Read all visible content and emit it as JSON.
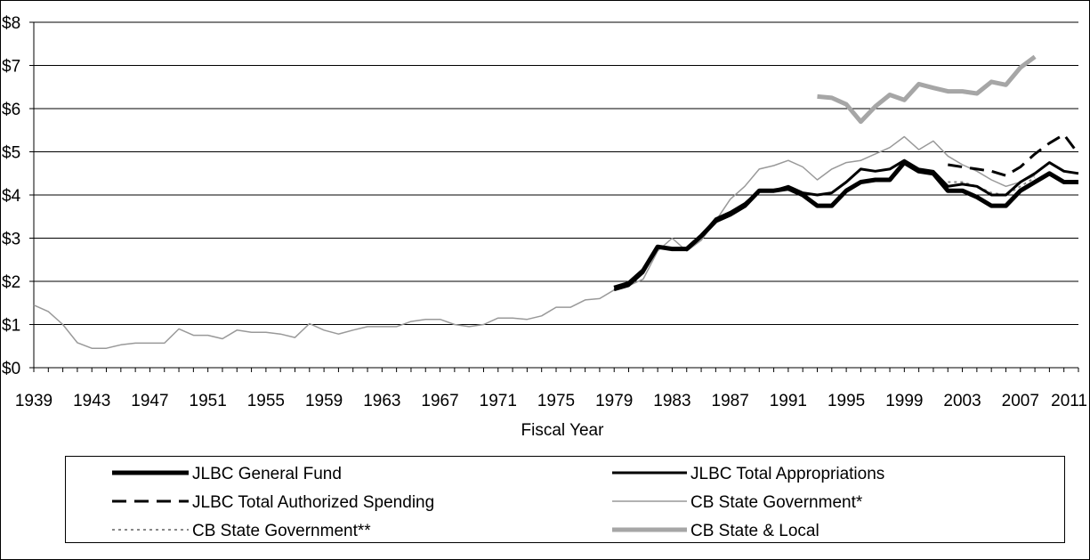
{
  "chart_data": {
    "type": "line",
    "title": "",
    "xlabel": "Fiscal Year",
    "ylabel": "",
    "xlim": [
      1939,
      2011
    ],
    "ylim": [
      0,
      8
    ],
    "y_ticks": [
      0,
      1,
      2,
      3,
      4,
      5,
      6,
      7,
      8
    ],
    "y_tick_labels": [
      "$0",
      "$1",
      "$2",
      "$3",
      "$4",
      "$5",
      "$6",
      "$7",
      "$8"
    ],
    "x_tick_labels": [
      "1939",
      "1943",
      "1947",
      "1951",
      "1955",
      "1959",
      "1963",
      "1967",
      "1971",
      "1975",
      "1979",
      "1983",
      "1987",
      "1991",
      "1995",
      "1999",
      "2003",
      "2007",
      "2011"
    ],
    "grid": "horizontal",
    "legend_position": "bottom",
    "series": [
      {
        "name": "JLBC General Fund",
        "color": "#000000",
        "style": "thick",
        "x": [
          1979,
          1980,
          1981,
          1982,
          1983,
          1984,
          1985,
          1986,
          1987,
          1988,
          1989,
          1990,
          1991,
          1992,
          1993,
          1994,
          1995,
          1996,
          1997,
          1998,
          1999,
          2000,
          2001,
          2002,
          2003,
          2004,
          2005,
          2006,
          2007,
          2008,
          2009,
          2010,
          2011
        ],
        "y": [
          1.85,
          1.95,
          2.25,
          2.8,
          2.75,
          2.75,
          3.05,
          3.4,
          3.55,
          3.75,
          4.1,
          4.1,
          4.15,
          4.0,
          3.75,
          3.75,
          4.1,
          4.3,
          4.35,
          4.35,
          4.75,
          4.55,
          4.5,
          4.1,
          4.1,
          3.95,
          3.75,
          3.75,
          4.1,
          4.3,
          4.5,
          4.3,
          4.3
        ]
      },
      {
        "name": "JLBC Total Appropriations",
        "color": "#000000",
        "style": "solid",
        "x": [
          1979,
          1980,
          1981,
          1982,
          1983,
          1984,
          1985,
          1986,
          1987,
          1988,
          1989,
          1990,
          1991,
          1992,
          1993,
          1994,
          1995,
          1996,
          1997,
          1998,
          1999,
          2000,
          2001,
          2002,
          2003,
          2004,
          2005,
          2006,
          2007,
          2008,
          2009,
          2010,
          2011
        ],
        "y": [
          1.8,
          1.9,
          2.2,
          2.8,
          2.75,
          2.75,
          3.05,
          3.45,
          3.6,
          3.8,
          4.1,
          4.1,
          4.2,
          4.05,
          4.0,
          4.05,
          4.3,
          4.6,
          4.55,
          4.6,
          4.8,
          4.6,
          4.55,
          4.2,
          4.25,
          4.2,
          4.0,
          4.0,
          4.3,
          4.5,
          4.75,
          4.55,
          4.5
        ]
      },
      {
        "name": "JLBC Total Authorized Spending",
        "color": "#000000",
        "style": "dashed",
        "x": [
          2002,
          2003,
          2004,
          2005,
          2006,
          2007,
          2008,
          2009,
          2010,
          2011
        ],
        "y": [
          4.7,
          4.65,
          4.6,
          4.55,
          4.45,
          4.65,
          4.95,
          5.2,
          5.4,
          4.95
        ]
      },
      {
        "name": "CB State Government*",
        "color": "#999999",
        "style": "thin",
        "x": [
          1939,
          1940,
          1941,
          1942,
          1943,
          1944,
          1945,
          1946,
          1947,
          1948,
          1949,
          1950,
          1951,
          1952,
          1953,
          1954,
          1955,
          1956,
          1957,
          1958,
          1959,
          1960,
          1961,
          1962,
          1963,
          1964,
          1965,
          1966,
          1967,
          1968,
          1969,
          1970,
          1971,
          1972,
          1973,
          1974,
          1975,
          1976,
          1977,
          1978,
          1979,
          1980,
          1981,
          1982,
          1983,
          1984,
          1985,
          1986,
          1987,
          1988,
          1989,
          1990,
          1991,
          1992,
          1993,
          1994,
          1995,
          1996,
          1997,
          1998,
          1999,
          2000,
          2001,
          2002,
          2003,
          2004,
          2005,
          2006,
          2007,
          2008
        ],
        "y": [
          1.45,
          1.3,
          1.0,
          0.58,
          0.45,
          0.45,
          0.53,
          0.57,
          0.57,
          0.57,
          0.9,
          0.75,
          0.75,
          0.67,
          0.87,
          0.82,
          0.82,
          0.78,
          0.7,
          1.02,
          0.87,
          0.78,
          0.87,
          0.95,
          0.95,
          0.95,
          1.07,
          1.12,
          1.12,
          1.0,
          0.95,
          1.0,
          1.15,
          1.15,
          1.12,
          1.2,
          1.4,
          1.4,
          1.57,
          1.6,
          1.8,
          1.9,
          2.05,
          2.7,
          3.0,
          2.7,
          2.95,
          3.4,
          3.9,
          4.2,
          4.6,
          4.68,
          4.8,
          4.65,
          4.35,
          4.6,
          4.75,
          4.8,
          4.95,
          5.1,
          5.35,
          5.05,
          5.25,
          4.9,
          4.7,
          4.55,
          4.35,
          4.2,
          4.3,
          4.45
        ]
      },
      {
        "name": "CB State Government**",
        "color": "#888888",
        "style": "dotted",
        "x": [
          2002,
          2003,
          2004,
          2005,
          2006,
          2007,
          2008
        ],
        "y": [
          4.3,
          4.3,
          4.2,
          4.05,
          4.0,
          4.2,
          4.4
        ]
      },
      {
        "name": "CB State & Local",
        "color": "#a6a6a6",
        "style": "thick",
        "x": [
          1993,
          1994,
          1995,
          1996,
          1997,
          1998,
          1999,
          2000,
          2001,
          2002,
          2003,
          2004,
          2005,
          2006,
          2007,
          2008
        ],
        "y": [
          6.28,
          6.25,
          6.1,
          5.7,
          6.05,
          6.32,
          6.2,
          6.57,
          6.48,
          6.4,
          6.4,
          6.35,
          6.62,
          6.55,
          6.95,
          7.2
        ]
      }
    ]
  }
}
